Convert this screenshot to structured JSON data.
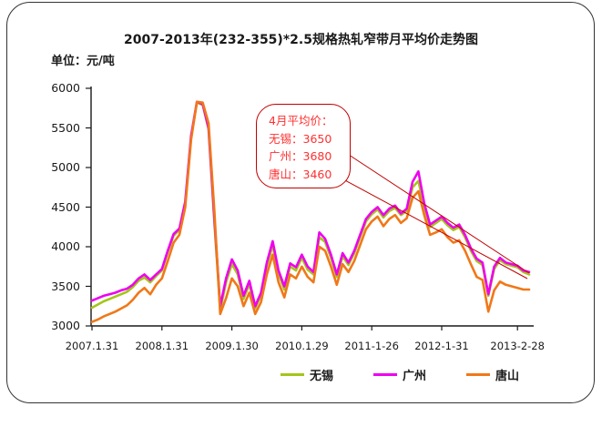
{
  "window": {
    "background": "#ffffff",
    "border_color": "#333333"
  },
  "title": "2007-2013年(232-355)*2.5规格热轧窄带月平均价走势图",
  "unit_label": "单位：元/吨",
  "callout": {
    "lines": [
      "4月平均价：",
      "无锡：3650",
      "广州：3680",
      "唐山：3460"
    ],
    "border_color": "#C00000",
    "text_color": "#FF3030",
    "pointer_target": "end of price lines (April 2013)"
  },
  "chart_data": {
    "type": "line",
    "title": "2007-2013年(232-355)*2.5规格热轧窄带月平均价走势图",
    "ylabel": "单位：元/吨",
    "ylim": [
      3000,
      6000
    ],
    "yticks": [
      6000,
      5500,
      5000,
      4500,
      4000,
      3500,
      3000
    ],
    "x_interval": "monthly",
    "x_start": "2007-01",
    "x_end": "2013-04",
    "grid": false,
    "legend_position": "bottom",
    "xticks": {
      "labels": [
        "2007.1.31",
        "2008.1.31",
        "2009.1.30",
        "2010.1.29",
        "2011-1-26",
        "2012-1-31",
        "2013-2-28"
      ],
      "month_indices": [
        0,
        12,
        24,
        36,
        48,
        60,
        73
      ]
    },
    "series": [
      {
        "name": "无锡",
        "color": "#A4C619",
        "values": [
          3230,
          3270,
          3310,
          3340,
          3370,
          3400,
          3430,
          3490,
          3570,
          3610,
          3550,
          3630,
          3700,
          3930,
          4140,
          4210,
          4550,
          5380,
          5820,
          5790,
          5480,
          4300,
          3200,
          3550,
          3780,
          3650,
          3340,
          3530,
          3220,
          3390,
          3760,
          4020,
          3660,
          3460,
          3750,
          3700,
          3860,
          3710,
          3650,
          4120,
          4060,
          3860,
          3620,
          3880,
          3770,
          3920,
          4120,
          4320,
          4410,
          4470,
          4370,
          4450,
          4490,
          4400,
          4450,
          4750,
          4830,
          4500,
          4250,
          4300,
          4350,
          4270,
          4210,
          4250,
          4120,
          3950,
          3820,
          3770,
          3380,
          3720,
          3830,
          3780,
          3760,
          3740,
          3680,
          3650
        ]
      },
      {
        "name": "广州",
        "color": "#EE00EE",
        "values": [
          3320,
          3350,
          3380,
          3400,
          3420,
          3450,
          3470,
          3520,
          3600,
          3650,
          3580,
          3650,
          3720,
          3950,
          4160,
          4230,
          4570,
          5400,
          5830,
          5800,
          5500,
          4350,
          3250,
          3600,
          3840,
          3700,
          3380,
          3570,
          3250,
          3420,
          3800,
          4070,
          3700,
          3500,
          3790,
          3740,
          3900,
          3750,
          3680,
          4180,
          4100,
          3900,
          3650,
          3920,
          3800,
          3950,
          4150,
          4350,
          4440,
          4500,
          4400,
          4480,
          4520,
          4420,
          4480,
          4820,
          4950,
          4550,
          4280,
          4330,
          4380,
          4300,
          4240,
          4280,
          4150,
          3980,
          3850,
          3800,
          3400,
          3750,
          3860,
          3800,
          3780,
          3760,
          3700,
          3680
        ]
      },
      {
        "name": "唐山",
        "color": "#F07818",
        "values": [
          3050,
          3080,
          3120,
          3150,
          3180,
          3220,
          3260,
          3330,
          3420,
          3480,
          3400,
          3520,
          3600,
          3820,
          4050,
          4150,
          4500,
          5350,
          5830,
          5820,
          5560,
          4450,
          3150,
          3350,
          3600,
          3500,
          3250,
          3420,
          3150,
          3300,
          3650,
          3900,
          3550,
          3360,
          3650,
          3600,
          3750,
          3620,
          3550,
          4000,
          3950,
          3750,
          3520,
          3780,
          3680,
          3820,
          4020,
          4220,
          4320,
          4380,
          4260,
          4350,
          4400,
          4300,
          4360,
          4620,
          4700,
          4400,
          4150,
          4180,
          4220,
          4120,
          4050,
          4080,
          3950,
          3780,
          3620,
          3580,
          3180,
          3450,
          3560,
          3520,
          3500,
          3480,
          3460,
          3460
        ]
      }
    ]
  }
}
